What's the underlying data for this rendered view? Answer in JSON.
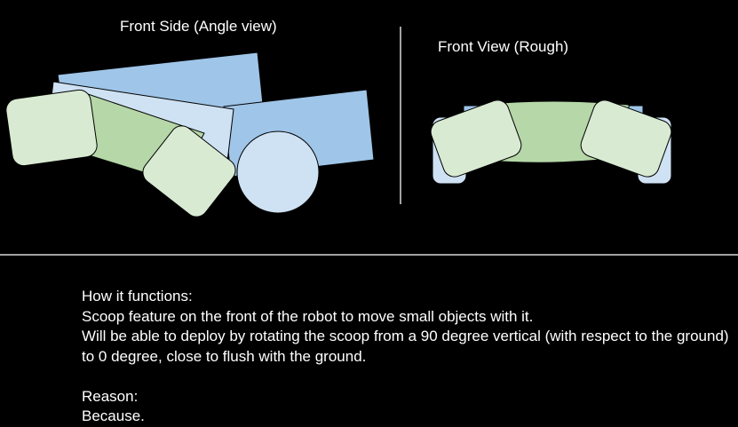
{
  "diagram": {
    "angle_view_label": "Front Side (Angle view)",
    "front_view_label": "Front View (Rough)"
  },
  "notes": {
    "function_heading": "How it functions:",
    "function_line_1": "Scoop feature on the front of the robot to move small objects with it.",
    "function_line_2": "Will be able to deploy by rotating the scoop from a 90 degree vertical (with respect to the ground) to 0 degree, close to flush with the ground.",
    "reason_heading": "Reason:",
    "reason_text": "Because."
  },
  "colors": {
    "background": "#000000",
    "text": "#ffffff",
    "divider": "#d9d9d9",
    "body_blue": "#9fc5e8",
    "light_blue": "#cfe2f3",
    "scoop_green": "#b6d7a8",
    "wheel_green": "#d9ead3",
    "outline": "#000000"
  }
}
